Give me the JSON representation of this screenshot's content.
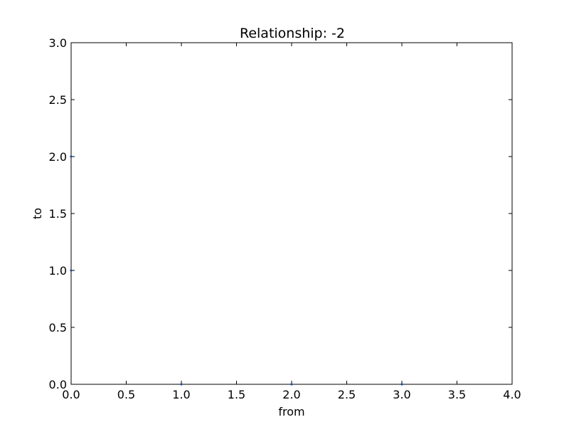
{
  "chart_data": {
    "type": "scatter",
    "title": "Relationship: -2",
    "xlabel": "from",
    "ylabel": "to",
    "xlim": [
      0.0,
      4.0
    ],
    "ylim": [
      0.0,
      3.0
    ],
    "grid": false,
    "x_ticks": [
      "0.0",
      "0.5",
      "1.0",
      "1.5",
      "2.0",
      "2.5",
      "3.0",
      "3.5",
      "4.0"
    ],
    "y_ticks": [
      "0.0",
      "0.5",
      "1.0",
      "1.5",
      "2.0",
      "2.5",
      "3.0"
    ],
    "points": [
      {
        "x": 0.0,
        "y": 2.0
      },
      {
        "x": 0.0,
        "y": 1.0
      },
      {
        "x": 1.0,
        "y": 0.0
      },
      {
        "x": 2.0,
        "y": 0.0
      },
      {
        "x": 3.0,
        "y": 0.0
      }
    ],
    "marker_color": "#1f4e9c"
  }
}
